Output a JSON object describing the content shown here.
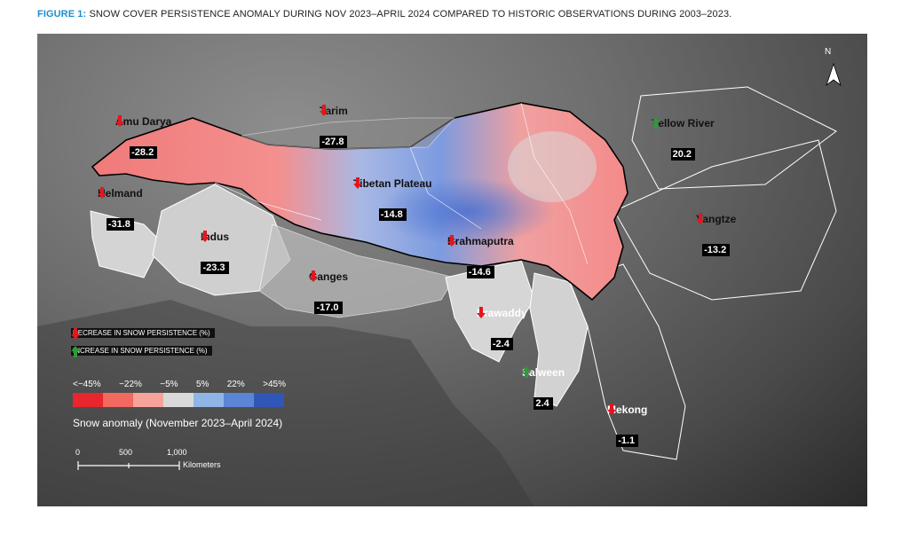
{
  "figure": {
    "label": "FIGURE 1:",
    "title": "SNOW COVER PERSISTENCE ANOMALY DURING NOV 2023–APRIL 2024 COMPARED TO HISTORIC OBSERVATIONS DURING 2003–2023."
  },
  "north_label": "N",
  "basins": [
    {
      "name": "Amu Darya",
      "value": "-28.2",
      "trend": "decrease"
    },
    {
      "name": "Tarim",
      "value": "-27.8",
      "trend": "decrease"
    },
    {
      "name": "Yellow River",
      "value": "20.2",
      "trend": "increase"
    },
    {
      "name": "Helmand",
      "value": "-31.8",
      "trend": "decrease"
    },
    {
      "name": "Tibetan Plateau",
      "value": "-14.8",
      "trend": "decrease"
    },
    {
      "name": "Yangtze",
      "value": "-13.2",
      "trend": "decrease"
    },
    {
      "name": "Indus",
      "value": "-23.3",
      "trend": "decrease"
    },
    {
      "name": "Brahmaputra",
      "value": "-14.6",
      "trend": "decrease"
    },
    {
      "name": "Ganges",
      "value": "-17.0",
      "trend": "decrease"
    },
    {
      "name": "Irrawaddy",
      "value": "-2.4",
      "trend": "decrease"
    },
    {
      "name": "Salween",
      "value": "2.4",
      "trend": "increase"
    },
    {
      "name": "Mekong",
      "value": "-1.1",
      "trend": "decrease"
    }
  ],
  "legend": {
    "decrease": "DECREASE IN SNOW PERSISTENCE (%)",
    "increase": "INCREASE IN SNOW PERSISTENCE (%)",
    "scale_labels": [
      "<−45%",
      "−22%",
      "−5%",
      "5%",
      "22%",
      ">45%"
    ],
    "scale_colors": [
      "#e8262c",
      "#f2695f",
      "#f5a39b",
      "#d9d9d9",
      "#8fb4e6",
      "#5b86d6",
      "#3056b8"
    ],
    "anomaly_title": "Snow anomaly (November 2023–April 2024)",
    "scale_bar_ticks": [
      "0",
      "500",
      "1,000"
    ],
    "scale_bar_unit": "Kilometers"
  },
  "colors": {
    "decrease_arrow": "#e3161e",
    "increase_arrow": "#2e9a3a",
    "caption_accent": "#1a8fcf"
  }
}
